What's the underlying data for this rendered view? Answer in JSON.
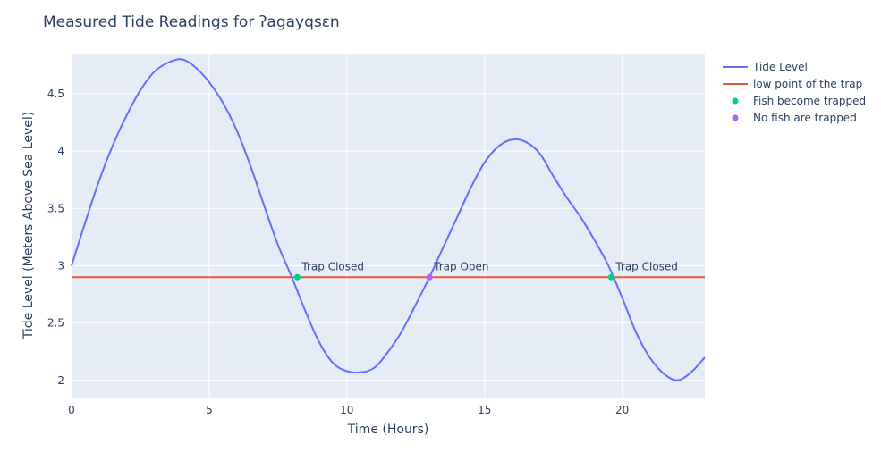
{
  "chart_data": {
    "type": "line",
    "title": "Measured Tide Readings for ʔagayqsɛn",
    "xlabel": "Time (Hours)",
    "ylabel": "Tide Level (Meters Above Sea Level)",
    "xlim": [
      0,
      23
    ],
    "ylim": [
      1.85,
      4.85
    ],
    "x_ticks": [
      0,
      5,
      10,
      15,
      20
    ],
    "y_ticks": [
      2,
      2.5,
      3,
      3.5,
      4,
      4.5
    ],
    "grid": true,
    "legend_position": "right",
    "series": [
      {
        "name": "Tide Level",
        "color": "#636efa",
        "x": [
          0,
          0.5,
          1,
          1.5,
          2,
          2.5,
          3,
          3.5,
          4,
          4.5,
          5,
          5.5,
          6,
          6.5,
          7,
          7.5,
          8,
          8.5,
          9,
          9.5,
          10,
          10.5,
          11,
          11.5,
          12,
          12.5,
          13,
          13.5,
          14,
          14.5,
          15,
          15.5,
          16,
          16.5,
          17,
          17.5,
          18,
          18.5,
          19,
          19.5,
          20,
          20.5,
          21,
          21.5,
          22,
          22.5,
          23
        ],
        "y": [
          3.0,
          3.38,
          3.74,
          4.05,
          4.31,
          4.53,
          4.69,
          4.77,
          4.8,
          4.73,
          4.6,
          4.42,
          4.18,
          3.87,
          3.52,
          3.18,
          2.9,
          2.6,
          2.33,
          2.15,
          2.08,
          2.07,
          2.11,
          2.25,
          2.43,
          2.66,
          2.9,
          3.16,
          3.42,
          3.68,
          3.9,
          4.04,
          4.1,
          4.08,
          3.98,
          3.78,
          3.59,
          3.42,
          3.22,
          3.0,
          2.72,
          2.42,
          2.2,
          2.06,
          2.0,
          2.07,
          2.2
        ]
      },
      {
        "name": "low point of the trap",
        "color": "#ef553b",
        "x": [
          0,
          23
        ],
        "y": [
          2.9,
          2.9
        ]
      },
      {
        "name": "Fish become trapped",
        "color": "#00cc96",
        "x": [
          8.2,
          19.6
        ],
        "y": [
          2.9,
          2.9
        ]
      },
      {
        "name": "No fish are trapped",
        "color": "#ab63fa",
        "x": [
          13.0
        ],
        "y": [
          2.9
        ]
      }
    ],
    "annotations": [
      {
        "text": "Trap Closed",
        "x": 8.2,
        "y": 2.9
      },
      {
        "text": "Trap Open",
        "x": 13.0,
        "y": 2.9
      },
      {
        "text": "Trap Closed",
        "x": 19.6,
        "y": 2.9
      }
    ]
  }
}
